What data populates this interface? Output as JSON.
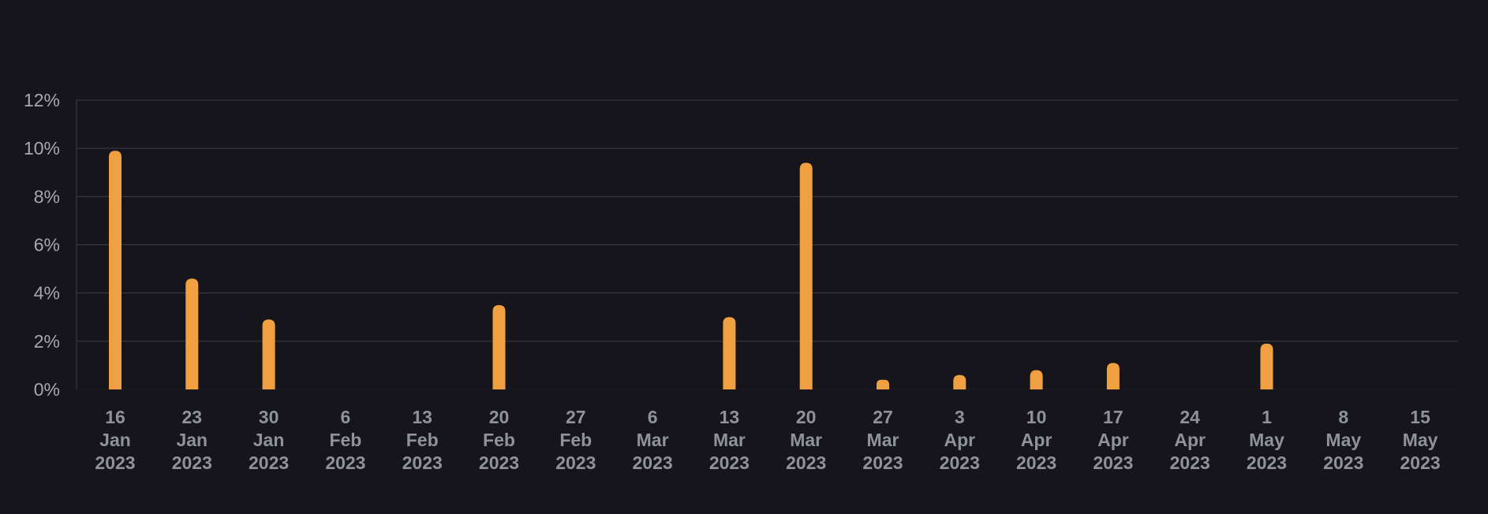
{
  "chart_data": {
    "type": "bar",
    "title": "",
    "xlabel": "",
    "ylabel": "",
    "ylim": [
      0,
      12
    ],
    "y_ticks": [
      0,
      2,
      4,
      6,
      8,
      10,
      12
    ],
    "y_tick_labels": [
      "0%",
      "2%",
      "4%",
      "6%",
      "8%",
      "10%",
      "12%"
    ],
    "grid": true,
    "legend": "none",
    "categories": [
      "16 Jan 2023",
      "23 Jan 2023",
      "30 Jan 2023",
      "6 Feb 2023",
      "13 Feb 2023",
      "20 Feb 2023",
      "27 Feb 2023",
      "6 Mar 2023",
      "13 Mar 2023",
      "20 Mar 2023",
      "27 Mar 2023",
      "3 Apr 2023",
      "10 Apr 2023",
      "17 Apr 2023",
      "24 Apr 2023",
      "1 May 2023",
      "8 May 2023",
      "15 May 2023"
    ],
    "category_lines": [
      [
        "16",
        "Jan",
        "2023"
      ],
      [
        "23",
        "Jan",
        "2023"
      ],
      [
        "30",
        "Jan",
        "2023"
      ],
      [
        "6",
        "Feb",
        "2023"
      ],
      [
        "13",
        "Feb",
        "2023"
      ],
      [
        "20",
        "Feb",
        "2023"
      ],
      [
        "27",
        "Feb",
        "2023"
      ],
      [
        "6",
        "Mar",
        "2023"
      ],
      [
        "13",
        "Mar",
        "2023"
      ],
      [
        "20",
        "Mar",
        "2023"
      ],
      [
        "27",
        "Mar",
        "2023"
      ],
      [
        "3",
        "Apr",
        "2023"
      ],
      [
        "10",
        "Apr",
        "2023"
      ],
      [
        "17",
        "Apr",
        "2023"
      ],
      [
        "24",
        "Apr",
        "2023"
      ],
      [
        "1",
        "May",
        "2023"
      ],
      [
        "8",
        "May",
        "2023"
      ],
      [
        "15",
        "May",
        "2023"
      ]
    ],
    "values": [
      9.9,
      4.6,
      2.9,
      0,
      0,
      3.5,
      0,
      0,
      3.0,
      9.4,
      0.4,
      0.6,
      0.8,
      1.1,
      0,
      1.9,
      0,
      0
    ],
    "colors": {
      "background": "#15151b",
      "bar": "#f0a040",
      "grid": "#3d3d44",
      "axis": "#3d3d44",
      "y_tick_text": "#a7a7ad",
      "x_tick_text": "#8f929a"
    }
  }
}
